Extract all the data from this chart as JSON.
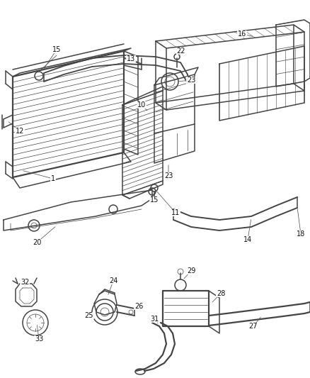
{
  "bg_color": "#ffffff",
  "line_color": "#444444",
  "label_color": "#111111",
  "fig_width": 4.38,
  "fig_height": 5.33,
  "dpi": 100,
  "font_size": 7.0,
  "lw_main": 1.1,
  "lw_thin": 0.5,
  "lw_thick": 1.6
}
